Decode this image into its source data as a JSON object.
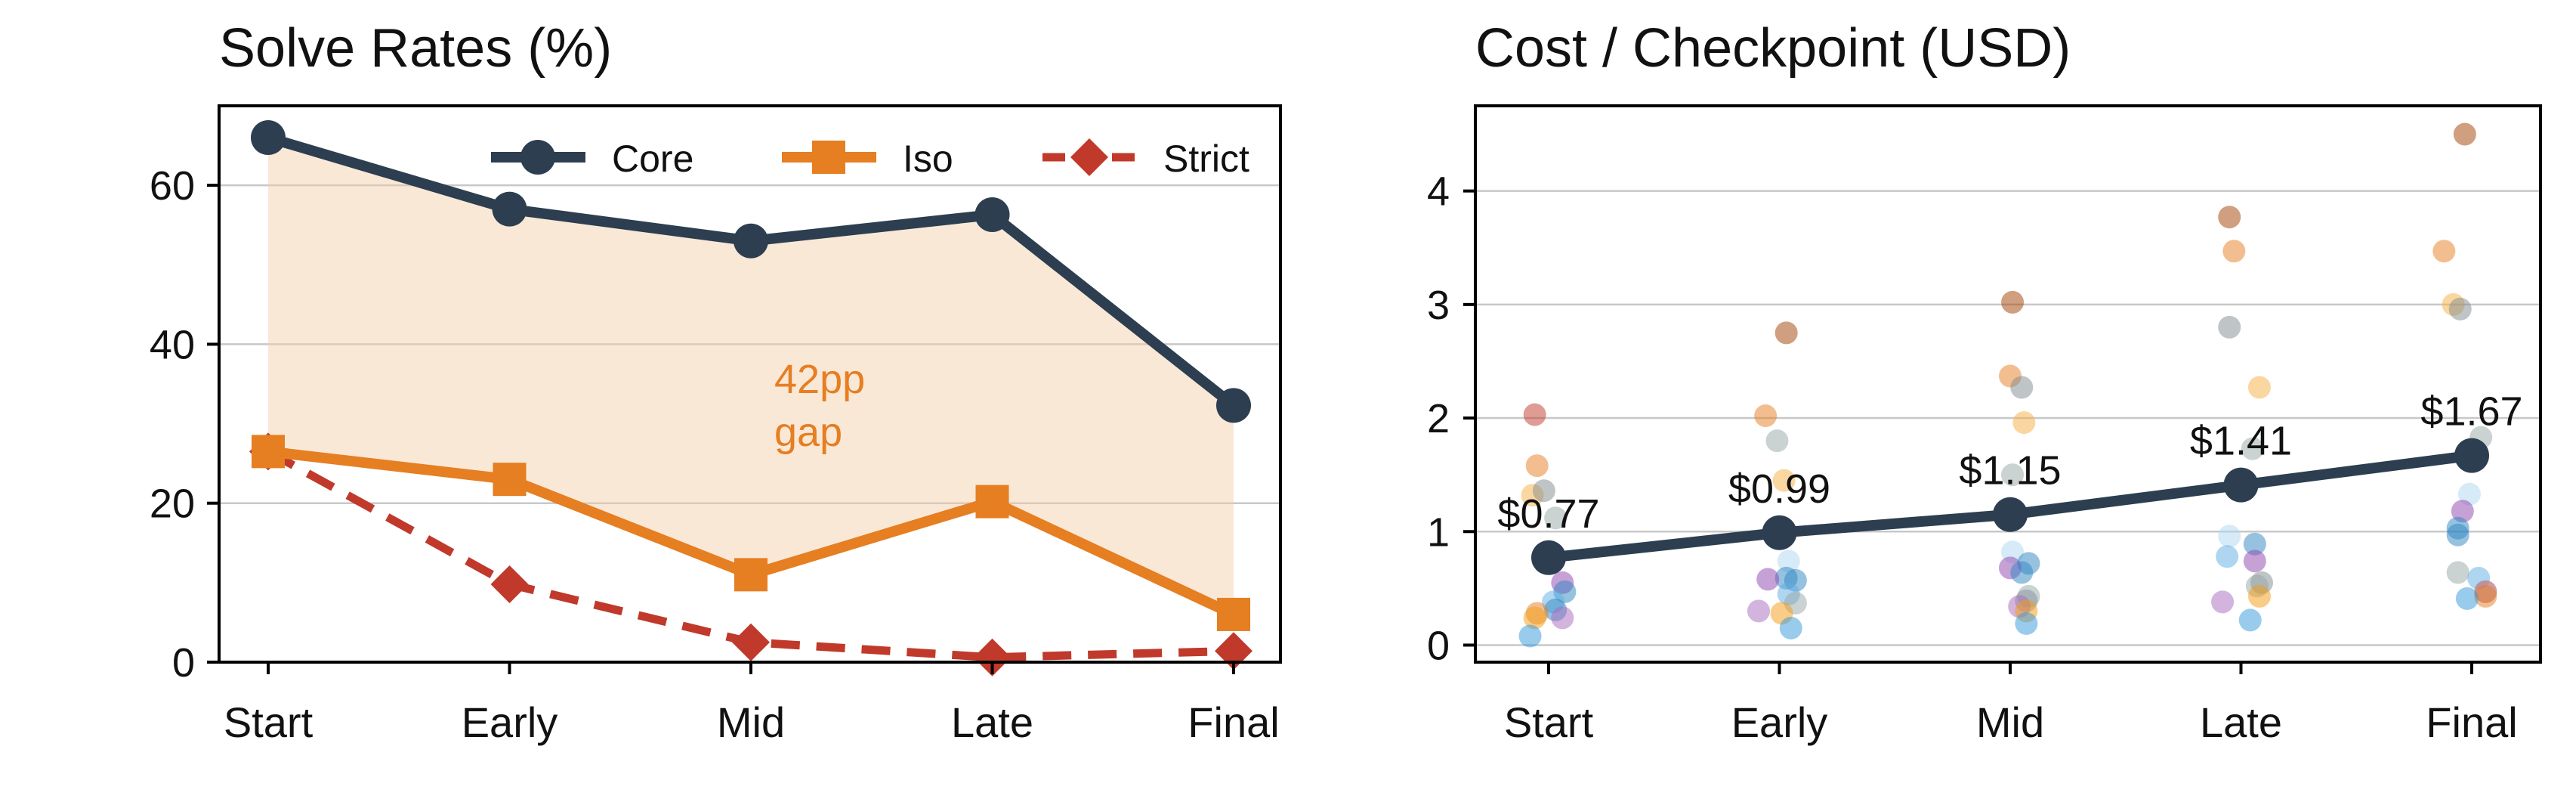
{
  "chart_data": [
    {
      "type": "line",
      "title": "Solve Rates (%)",
      "categories": [
        "Start",
        "Early",
        "Mid",
        "Late",
        "Final"
      ],
      "ylim": [
        0,
        70
      ],
      "yticks": [
        0,
        20,
        40,
        60
      ],
      "grid": "horizontal",
      "legend_position": "top-right",
      "series": [
        {
          "name": "Core",
          "values": [
            66,
            57,
            53,
            56.3,
            32.3
          ],
          "color": "#2c3e50",
          "marker": "circle",
          "style": "solid"
        },
        {
          "name": "Iso",
          "values": [
            26.5,
            23,
            11,
            20.2,
            6
          ],
          "color": "#e67e22",
          "marker": "square",
          "style": "solid"
        },
        {
          "name": "Strict",
          "values": [
            26.5,
            9.8,
            2.5,
            0.6,
            1.4
          ],
          "color": "#c0392b",
          "marker": "diamond",
          "style": "dashed"
        }
      ],
      "shaded_region": {
        "between": [
          "Core",
          "Iso"
        ],
        "color": "#f5cba7"
      },
      "annotation": {
        "lines": [
          "42pp",
          "gap"
        ],
        "color": "#e67e22"
      }
    },
    {
      "type": "scatter",
      "title": "Cost / Checkpoint (USD)",
      "categories": [
        "Start",
        "Early",
        "Mid",
        "Late",
        "Final"
      ],
      "ylim": [
        -0.15,
        4.75
      ],
      "yticks": [
        0,
        1,
        2,
        3,
        4
      ],
      "grid": "horizontal",
      "mean_series": {
        "values": [
          0.77,
          0.99,
          1.15,
          1.41,
          1.67
        ],
        "labels": [
          "$0.77",
          "$0.99",
          "$1.15",
          "$1.41",
          "$1.67"
        ],
        "color": "#2c3e50"
      },
      "points": [
        {
          "cat": 0,
          "dx": -0.06,
          "y": 2.03,
          "color": "#c0392b"
        },
        {
          "cat": 0,
          "dx": -0.05,
          "y": 1.58,
          "color": "#e67e22"
        },
        {
          "cat": 0,
          "dx": -0.07,
          "y": 1.32,
          "color": "#f5b041"
        },
        {
          "cat": 0,
          "dx": -0.02,
          "y": 1.36,
          "color": "#7f8c8d"
        },
        {
          "cat": 0,
          "dx": 0.03,
          "y": 1.12,
          "color": "#95a5a6"
        },
        {
          "cat": 0,
          "dx": 0.06,
          "y": 0.55,
          "color": "#8e44ad"
        },
        {
          "cat": 0,
          "dx": 0.07,
          "y": 0.47,
          "color": "#2e86c1"
        },
        {
          "cat": 0,
          "dx": 0.02,
          "y": 0.38,
          "color": "#5dade2"
        },
        {
          "cat": 0,
          "dx": 0.03,
          "y": 0.31,
          "color": "#2e86c1"
        },
        {
          "cat": 0,
          "dx": -0.05,
          "y": 0.28,
          "color": "#e67e22"
        },
        {
          "cat": 0,
          "dx": -0.06,
          "y": 0.24,
          "color": "#f39c12"
        },
        {
          "cat": 0,
          "dx": 0.06,
          "y": 0.24,
          "color": "#a569bd"
        },
        {
          "cat": 0,
          "dx": -0.08,
          "y": 0.08,
          "color": "#3498db"
        },
        {
          "cat": 1,
          "dx": -0.06,
          "y": 2.02,
          "color": "#e67e22"
        },
        {
          "cat": 1,
          "dx": 0.03,
          "y": 2.75,
          "color": "#a04000"
        },
        {
          "cat": 1,
          "dx": -0.01,
          "y": 1.8,
          "color": "#95a5a6"
        },
        {
          "cat": 1,
          "dx": 0.02,
          "y": 1.45,
          "color": "#f5b041"
        },
        {
          "cat": 1,
          "dx": 0.04,
          "y": 0.74,
          "color": "#aed6f1"
        },
        {
          "cat": 1,
          "dx": 0.03,
          "y": 0.59,
          "color": "#2e86c1"
        },
        {
          "cat": 1,
          "dx": -0.05,
          "y": 0.58,
          "color": "#8e44ad"
        },
        {
          "cat": 1,
          "dx": 0.07,
          "y": 0.57,
          "color": "#2e86c1"
        },
        {
          "cat": 1,
          "dx": 0.04,
          "y": 0.45,
          "color": "#5dade2"
        },
        {
          "cat": 1,
          "dx": 0.07,
          "y": 0.37,
          "color": "#95a5a6"
        },
        {
          "cat": 1,
          "dx": -0.09,
          "y": 0.3,
          "color": "#a569bd"
        },
        {
          "cat": 1,
          "dx": 0.01,
          "y": 0.28,
          "color": "#f39c12"
        },
        {
          "cat": 1,
          "dx": 0.05,
          "y": 0.15,
          "color": "#3498db"
        },
        {
          "cat": 2,
          "dx": 0.01,
          "y": 3.02,
          "color": "#a04000"
        },
        {
          "cat": 2,
          "dx": 0.0,
          "y": 2.37,
          "color": "#e67e22"
        },
        {
          "cat": 2,
          "dx": 0.05,
          "y": 2.27,
          "color": "#7f8c8d"
        },
        {
          "cat": 2,
          "dx": 0.06,
          "y": 1.96,
          "color": "#f5b041"
        },
        {
          "cat": 2,
          "dx": 0.01,
          "y": 1.5,
          "color": "#95a5a6"
        },
        {
          "cat": 2,
          "dx": 0.01,
          "y": 0.82,
          "color": "#aed6f1"
        },
        {
          "cat": 2,
          "dx": 0.08,
          "y": 0.72,
          "color": "#2e86c1"
        },
        {
          "cat": 2,
          "dx": 0.0,
          "y": 0.68,
          "color": "#8e44ad"
        },
        {
          "cat": 2,
          "dx": 0.05,
          "y": 0.64,
          "color": "#2e86c1"
        },
        {
          "cat": 2,
          "dx": 0.08,
          "y": 0.43,
          "color": "#95a5a6"
        },
        {
          "cat": 2,
          "dx": 0.07,
          "y": 0.39,
          "color": "#85929e"
        },
        {
          "cat": 2,
          "dx": 0.04,
          "y": 0.34,
          "color": "#a569bd"
        },
        {
          "cat": 2,
          "dx": 0.07,
          "y": 0.3,
          "color": "#f39c12"
        },
        {
          "cat": 2,
          "dx": 0.07,
          "y": 0.19,
          "color": "#3498db"
        },
        {
          "cat": 3,
          "dx": -0.05,
          "y": 3.77,
          "color": "#a04000"
        },
        {
          "cat": 3,
          "dx": -0.03,
          "y": 3.47,
          "color": "#e67e22"
        },
        {
          "cat": 3,
          "dx": -0.05,
          "y": 2.8,
          "color": "#7f8c8d"
        },
        {
          "cat": 3,
          "dx": 0.08,
          "y": 2.27,
          "color": "#f5b041"
        },
        {
          "cat": 3,
          "dx": 0.05,
          "y": 1.73,
          "color": "#95a5a6"
        },
        {
          "cat": 3,
          "dx": -0.05,
          "y": 0.96,
          "color": "#aed6f1"
        },
        {
          "cat": 3,
          "dx": 0.06,
          "y": 0.89,
          "color": "#2e86c1"
        },
        {
          "cat": 3,
          "dx": -0.06,
          "y": 0.78,
          "color": "#5dade2"
        },
        {
          "cat": 3,
          "dx": 0.06,
          "y": 0.74,
          "color": "#8e44ad"
        },
        {
          "cat": 3,
          "dx": 0.09,
          "y": 0.55,
          "color": "#7f8c8d"
        },
        {
          "cat": 3,
          "dx": 0.07,
          "y": 0.52,
          "color": "#95a5a6"
        },
        {
          "cat": 3,
          "dx": 0.08,
          "y": 0.43,
          "color": "#f39c12"
        },
        {
          "cat": 3,
          "dx": -0.08,
          "y": 0.38,
          "color": "#a569bd"
        },
        {
          "cat": 3,
          "dx": 0.04,
          "y": 0.22,
          "color": "#3498db"
        },
        {
          "cat": 4,
          "dx": -0.03,
          "y": 4.5,
          "color": "#a04000"
        },
        {
          "cat": 4,
          "dx": -0.12,
          "y": 3.47,
          "color": "#e67e22"
        },
        {
          "cat": 4,
          "dx": -0.08,
          "y": 3.0,
          "color": "#f5b041"
        },
        {
          "cat": 4,
          "dx": -0.05,
          "y": 2.96,
          "color": "#7f8c8d"
        },
        {
          "cat": 4,
          "dx": 0.04,
          "y": 1.83,
          "color": "#95a5a6"
        },
        {
          "cat": 4,
          "dx": -0.01,
          "y": 1.33,
          "color": "#aed6f1"
        },
        {
          "cat": 4,
          "dx": -0.04,
          "y": 1.18,
          "color": "#8e44ad"
        },
        {
          "cat": 4,
          "dx": -0.06,
          "y": 1.03,
          "color": "#2e86c1"
        },
        {
          "cat": 4,
          "dx": -0.06,
          "y": 0.97,
          "color": "#2e86c1"
        },
        {
          "cat": 4,
          "dx": -0.06,
          "y": 0.64,
          "color": "#95a5a6"
        },
        {
          "cat": 4,
          "dx": 0.03,
          "y": 0.59,
          "color": "#5dade2"
        },
        {
          "cat": 4,
          "dx": 0.06,
          "y": 0.47,
          "color": "#f39c12"
        },
        {
          "cat": 4,
          "dx": 0.06,
          "y": 0.47,
          "color": "#a569bd"
        },
        {
          "cat": 4,
          "dx": 0.06,
          "y": 0.43,
          "color": "#e67e22"
        },
        {
          "cat": 4,
          "dx": -0.02,
          "y": 0.41,
          "color": "#3498db"
        }
      ]
    }
  ]
}
